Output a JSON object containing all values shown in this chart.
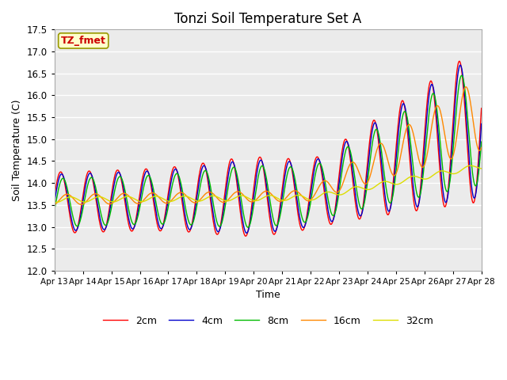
{
  "title": "Tonzi Soil Temperature Set A",
  "xlabel": "Time",
  "ylabel": "Soil Temperature (C)",
  "annotation": "TZ_fmet",
  "ylim": [
    12.0,
    17.5
  ],
  "plot_bg": "#ebebeb",
  "line_colors": {
    "2cm": "#ff0000",
    "4cm": "#0000cc",
    "8cm": "#00bb00",
    "16cm": "#ff8800",
    "32cm": "#dddd00"
  },
  "legend_labels": [
    "2cm",
    "4cm",
    "8cm",
    "16cm",
    "32cm"
  ],
  "x_tick_labels": [
    "Apr 13",
    "Apr 14",
    "Apr 15",
    "Apr 16",
    "Apr 17",
    "Apr 18",
    "Apr 19",
    "Apr 20",
    "Apr 21",
    "Apr 22",
    "Apr 23",
    "Apr 24",
    "Apr 25",
    "Apr 26",
    "Apr 27",
    "Apr 28"
  ],
  "title_fontsize": 12
}
